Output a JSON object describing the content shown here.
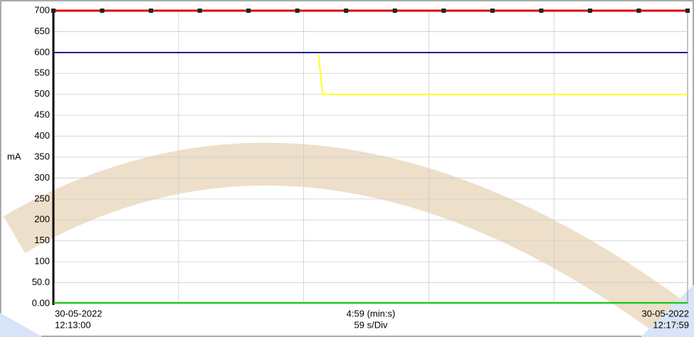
{
  "chart_data": {
    "type": "line",
    "y_label": "mA",
    "start_date": "30-05-2022",
    "end_date": "30-05-2022",
    "duration_label": "4:59 (min:s)",
    "division_label": "59 s/Div",
    "xlim": [
      "12:13:00",
      "12:17:59"
    ],
    "xticks": [
      "12:13:59",
      "12:14:58",
      "12:15:57",
      "12:16:56"
    ],
    "ylim": [
      0,
      700
    ],
    "yticks": [
      {
        "value": 0,
        "label": "0.00"
      },
      {
        "value": 50,
        "label": "50.0"
      },
      100,
      150,
      200,
      250,
      300,
      350,
      400,
      450,
      500,
      550,
      600,
      650,
      700
    ],
    "grid": true,
    "series": [
      {
        "color": "#e00000",
        "markers": true,
        "x": [
          "12:13:00",
          "12:13:23",
          "12:13:46",
          "12:14:09",
          "12:14:32",
          "12:14:55",
          "12:15:18",
          "12:15:41",
          "12:16:04",
          "12:16:27",
          "12:16:50",
          "12:17:13",
          "12:17:36",
          "12:17:59"
        ],
        "values": [
          700,
          700,
          700,
          700,
          700,
          700,
          700,
          700,
          700,
          700,
          700,
          700,
          700,
          700
        ]
      },
      {
        "color": "#000080",
        "markers": false,
        "x": [
          "12:13:00",
          "12:17:59"
        ],
        "values": [
          600,
          600
        ]
      },
      {
        "color": "#ffff00",
        "markers": false,
        "x": [
          "12:15:05",
          "12:15:07",
          "12:17:59"
        ],
        "values": [
          595,
          500,
          500
        ]
      },
      {
        "color": "#00cc00",
        "markers": false,
        "x": [
          "12:13:00",
          "12:17:59"
        ],
        "values": [
          2,
          2
        ]
      }
    ]
  }
}
